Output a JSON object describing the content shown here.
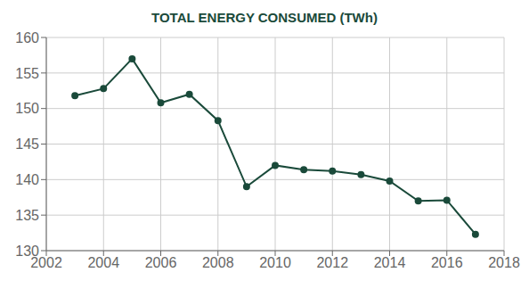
{
  "chart_data": {
    "type": "line",
    "title": "TOTAL ENERGY CONSUMED (TWh)",
    "x": [
      2003,
      2004,
      2005,
      2006,
      2007,
      2008,
      2009,
      2010,
      2011,
      2012,
      2013,
      2014,
      2015,
      2016,
      2017
    ],
    "values": [
      151.8,
      152.8,
      157.0,
      150.8,
      152.0,
      148.3,
      139.0,
      142.0,
      141.4,
      141.2,
      140.7,
      139.8,
      137.0,
      137.1,
      132.3
    ],
    "color": "#1a4a3a",
    "marker": "circle",
    "xlim": [
      2002,
      2018
    ],
    "ylim": [
      130,
      160
    ],
    "xticks": [
      2002,
      2004,
      2006,
      2008,
      2010,
      2012,
      2014,
      2016,
      2018
    ],
    "yticks": [
      130,
      135,
      140,
      145,
      150,
      155,
      160
    ],
    "grid": true
  }
}
